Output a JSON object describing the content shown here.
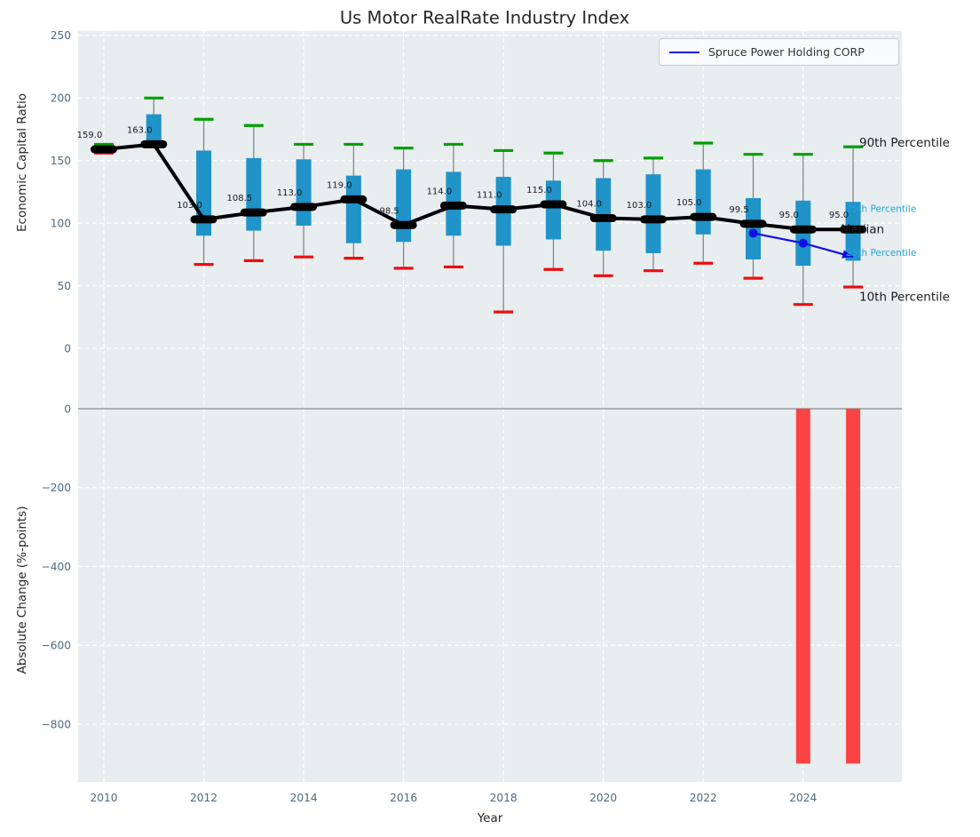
{
  "title": "Us Motor RealRate Industry Index",
  "legend": {
    "label": "Spruce Power Holding CORP"
  },
  "chart_data": {
    "type": "boxplot+line+bar",
    "x_label": "Year",
    "x_ticks": [
      2010,
      2012,
      2014,
      2016,
      2018,
      2020,
      2022,
      2024
    ],
    "top": {
      "y_label": "Economic Capital Ratio",
      "y_ticks": [
        0,
        50,
        100,
        150,
        200,
        250
      ],
      "ylim": [
        -35,
        255
      ],
      "grid": "white-dashed",
      "boxes": [
        {
          "year": 2010,
          "label": "159.0",
          "median": 159.0,
          "p10": 156,
          "p25": 157.5,
          "p75": 160.5,
          "p90": 163
        },
        {
          "year": 2011,
          "label": "163.0",
          "median": 163.0,
          "p10": 161,
          "p25": 163,
          "p75": 187,
          "p90": 200
        },
        {
          "year": 2012,
          "label": "103.0",
          "median": 103.0,
          "p10": 67,
          "p25": 90,
          "p75": 158,
          "p90": 183
        },
        {
          "year": 2013,
          "label": "108.5",
          "median": 108.5,
          "p10": 70,
          "p25": 94,
          "p75": 152,
          "p90": 178
        },
        {
          "year": 2014,
          "label": "113.0",
          "median": 113.0,
          "p10": 73,
          "p25": 98,
          "p75": 151,
          "p90": 163
        },
        {
          "year": 2015,
          "label": "119.0",
          "median": 119.0,
          "p10": 72,
          "p25": 84,
          "p75": 138,
          "p90": 163
        },
        {
          "year": 2016,
          "label": "98.5",
          "median": 98.5,
          "p10": 64,
          "p25": 85,
          "p75": 143,
          "p90": 160
        },
        {
          "year": 2017,
          "label": "114.0",
          "median": 114.0,
          "p10": 65,
          "p25": 90,
          "p75": 141,
          "p90": 163
        },
        {
          "year": 2018,
          "label": "111.0",
          "median": 111.0,
          "p10": 29,
          "p25": 82,
          "p75": 137,
          "p90": 158
        },
        {
          "year": 2019,
          "label": "115.0",
          "median": 115.0,
          "p10": 63,
          "p25": 87,
          "p75": 134,
          "p90": 156
        },
        {
          "year": 2020,
          "label": "104.0",
          "median": 104.0,
          "p10": 58,
          "p25": 78,
          "p75": 136,
          "p90": 150
        },
        {
          "year": 2021,
          "label": "103.0",
          "median": 103.0,
          "p10": 62,
          "p25": 76,
          "p75": 139,
          "p90": 152
        },
        {
          "year": 2022,
          "label": "105.0",
          "median": 105.0,
          "p10": 68,
          "p25": 91,
          "p75": 143,
          "p90": 164
        },
        {
          "year": 2023,
          "label": "99.5",
          "median": 99.5,
          "p10": 56,
          "p25": 71,
          "p75": 120,
          "p90": 155
        },
        {
          "year": 2024,
          "label": "95.0",
          "median": 95.0,
          "p10": 35,
          "p25": 66,
          "p75": 118,
          "p90": 155
        },
        {
          "year": 2025,
          "label": "95.0",
          "median": 95.0,
          "p10": 49,
          "p25": 70,
          "p75": 117,
          "p90": 161
        }
      ],
      "company_series": {
        "name": "Spruce Power Holding CORP",
        "points": [
          {
            "year": 2023,
            "value": 92
          },
          {
            "year": 2024,
            "value": 84
          },
          {
            "year": 2025,
            "value": 73
          }
        ],
        "end_style": "arrow"
      },
      "annotations": [
        {
          "text": "90th Percentile",
          "value": 161,
          "tone": "dark",
          "size": 13.5
        },
        {
          "text": "75th Percentile",
          "value": 109,
          "tone": "accent",
          "size": 10.5
        },
        {
          "text": "Median",
          "value": 92,
          "tone": "dark",
          "size": 13.5
        },
        {
          "text": "25th Percentile",
          "value": 74,
          "tone": "accent",
          "size": 10.5
        },
        {
          "text": "10th Percentile",
          "value": 38,
          "tone": "dark",
          "size": 13.5
        }
      ]
    },
    "bottom": {
      "y_label": "Absolute Change (%-points)",
      "y_ticks": [
        0,
        -200,
        -400,
        -600,
        -800
      ],
      "ylim": [
        43,
        -946
      ],
      "bars": [
        {
          "year": 2024,
          "value": -900
        },
        {
          "year": 2025,
          "value": -900
        }
      ]
    },
    "colors": {
      "box_fill": "#2093c8",
      "whisker": "#7f7f7f",
      "cap_high": "#00a000",
      "cap_low": "#ed0e0e",
      "median": "#000000",
      "company_line": "#0f10e3",
      "bar": "#fb4343",
      "plot_bg": "#e8edf0",
      "grid": "#ffffff",
      "tick": "#4e6a81",
      "text_dark": "#1a1a1a",
      "annotation_accent": "#22a5d9",
      "zero_line": "#9a9a9a"
    }
  }
}
